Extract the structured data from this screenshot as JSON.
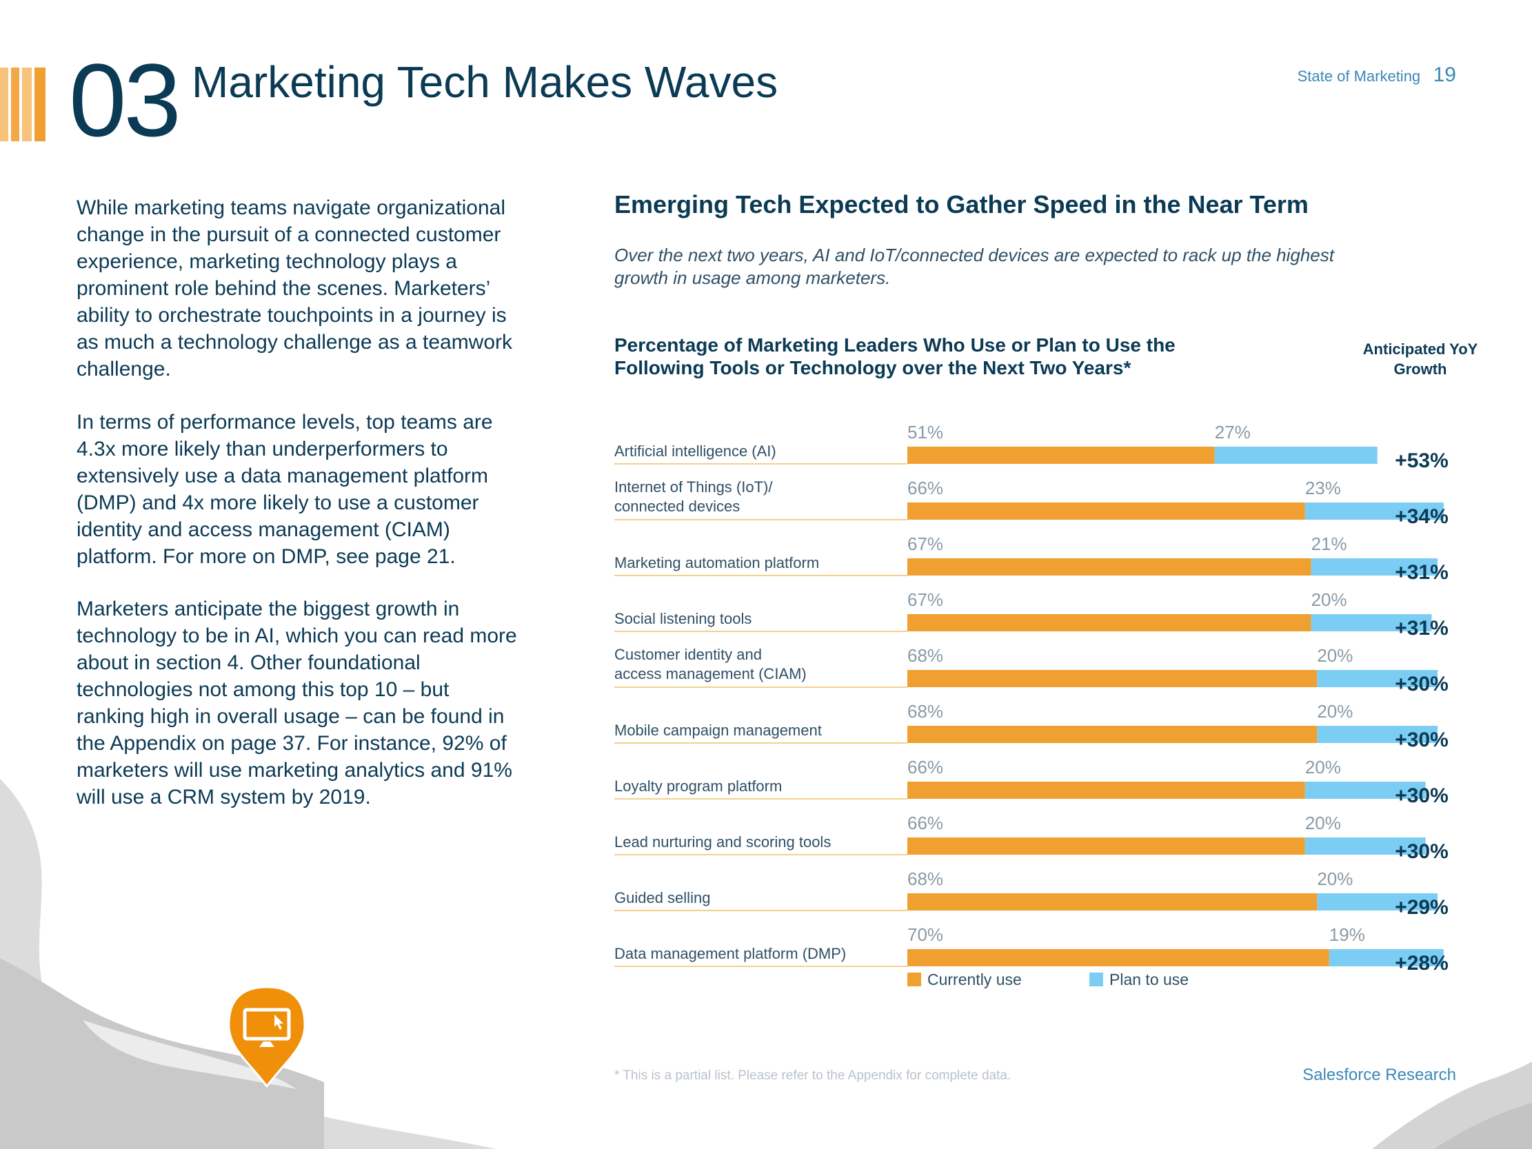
{
  "header": {
    "section_number": "03",
    "title": "Marketing Tech Makes Waves",
    "report_label": "State of Marketing",
    "page_number": "19"
  },
  "body_paragraphs": [
    "While marketing teams navigate organizational change in the pursuit of a connected customer experience, marketing technology plays a prominent role behind the scenes. Marketers’ ability to orchestrate touchpoints in a journey is as much a technology challenge as a teamwork challenge.",
    "In terms of performance levels, top teams are 4.3x more likely than underperformers to extensively use a data management platform (DMP) and 4x more likely to use a customer identity and access management (CIAM) platform. For more on DMP, see page 21.",
    "Marketers anticipate the biggest growth in technology to be in AI, which you can read more about in section 4. Other foundational technologies not among this top 10 – but ranking high in overall usage – can be found in the Appendix on page 37. For instance, 92% of marketers will use marketing analytics and 91% will use a CRM system by 2019."
  ],
  "chart_section": {
    "title": "Emerging Tech Expected to Gather Speed in the Near Term",
    "subtitle": "Over the next two years, AI and IoT/connected devices are expected to rack up the highest growth in usage among marketers."
  },
  "chart_data": {
    "type": "bar",
    "orientation": "horizontal",
    "stacked": true,
    "title": "Percentage of Marketing Leaders Who Use or Plan to Use the Following Tools or Technology over the Next Two Years*",
    "extra_column_header": "Anticipated YoY Growth",
    "categories": [
      "Artificial intelligence (AI)",
      "Internet of Things (IoT)/\nconnected devices",
      "Marketing automation platform",
      "Social listening tools",
      "Customer identity and\naccess management (CIAM)",
      "Mobile campaign management",
      "Loyalty program platform",
      "Lead nurturing and scoring tools",
      "Guided selling",
      "Data management platform (DMP)"
    ],
    "series": [
      {
        "name": "Currently use",
        "color": "#f0a030",
        "values": [
          51,
          66,
          67,
          67,
          68,
          68,
          66,
          66,
          68,
          70
        ]
      },
      {
        "name": "Plan to use",
        "color": "#7ccdf4",
        "values": [
          27,
          23,
          21,
          20,
          20,
          20,
          20,
          20,
          20,
          19
        ]
      }
    ],
    "data_labels": {
      "currently_use": [
        "51%",
        "66%",
        "67%",
        "67%",
        "68%",
        "68%",
        "66%",
        "66%",
        "68%",
        "70%"
      ],
      "plan_to_use": [
        "27%",
        "23%",
        "21%",
        "20%",
        "20%",
        "20%",
        "20%",
        "20%",
        "20%",
        "19%"
      ]
    },
    "yoy_growth": [
      "+53%",
      "+34%",
      "+31%",
      "+31%",
      "+30%",
      "+30%",
      "+30%",
      "+30%",
      "+29%",
      "+28%"
    ],
    "xlim": [
      0,
      100
    ],
    "grid": false,
    "legend_position": "bottom"
  },
  "footnote": "* This is a partial list. Please refer to the Appendix for complete data.",
  "footer": "Salesforce Research",
  "icons": {
    "pin": "computer-pin-icon"
  },
  "colors": {
    "navy": "#0b3a55",
    "orange": "#f0a030",
    "light_blue": "#7ccdf4",
    "link_blue": "#3a88b5"
  }
}
